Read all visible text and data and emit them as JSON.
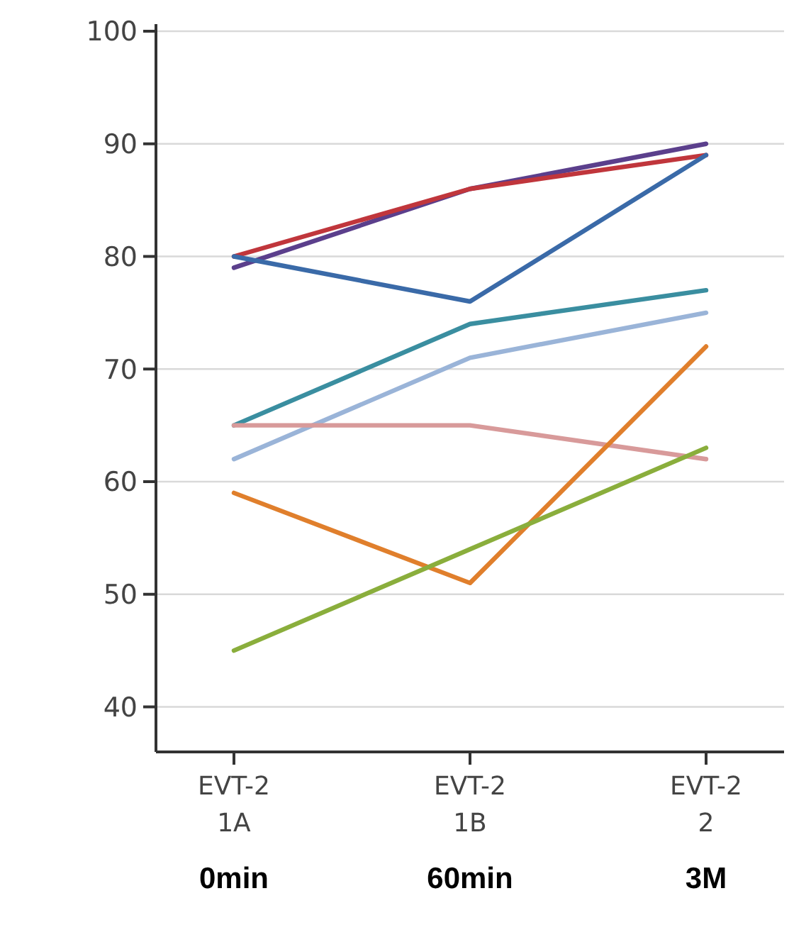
{
  "chart_data": {
    "type": "line",
    "categories": [
      "EVT-2\n1A\n0min",
      "EVT-2\n1B\n60min",
      "EVT-2\n2\n3M"
    ],
    "ylim": [
      36,
      100
    ],
    "yticks": [
      40,
      50,
      60,
      70,
      80,
      90,
      100
    ],
    "grid": "y",
    "marker": "none",
    "line_style": "solid",
    "series": [
      {
        "color": "#5b3f8c",
        "values": [
          79,
          86,
          90
        ]
      },
      {
        "color": "#c0363c",
        "values": [
          80,
          86,
          89
        ]
      },
      {
        "color": "#3a6aa8",
        "values": [
          80,
          76,
          89
        ]
      },
      {
        "color": "#3a8ea0",
        "values": [
          65,
          74,
          77
        ]
      },
      {
        "color": "#9ab4d8",
        "values": [
          62,
          71,
          75
        ]
      },
      {
        "color": "#d89a9a",
        "values": [
          65,
          65,
          62
        ]
      },
      {
        "color": "#e07f2c",
        "values": [
          59,
          51,
          72
        ]
      },
      {
        "color": "#8aae3c",
        "values": [
          45,
          54,
          63
        ]
      }
    ]
  }
}
